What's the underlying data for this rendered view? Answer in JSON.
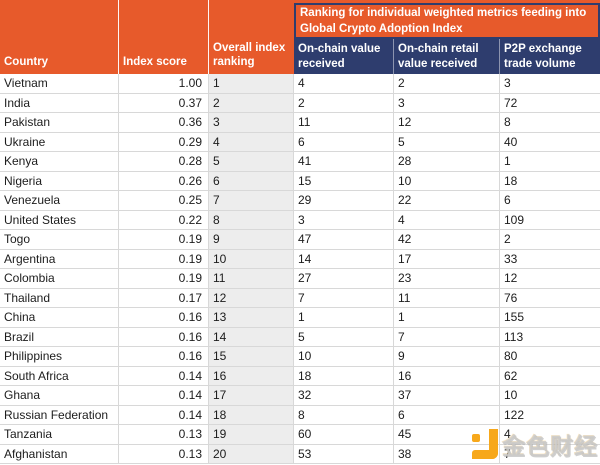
{
  "colors": {
    "orange": "#E75A2B",
    "navy": "#2E3D6E",
    "ranking_column_bg": "#EDEDED",
    "grid_line": "#D8D8D8",
    "watermark_gold": "#F7A81B"
  },
  "header": {
    "columns": [
      "Country",
      "Index score",
      "Overall index ranking"
    ],
    "banner": "Ranking for individual weighted metrics feeding into Global Crypto Adoption Index",
    "metric_columns": [
      "On-chain value received",
      "On-chain retail value received",
      "P2P exchange trade volume"
    ]
  },
  "chart_data": {
    "type": "table",
    "title": "Ranking for individual weighted metrics feeding into Global Crypto Adoption Index",
    "columns": [
      "Country",
      "Index score",
      "Overall index ranking",
      "On-chain value received",
      "On-chain retail value received",
      "P2P exchange trade volume"
    ],
    "rows": [
      [
        "Vietnam",
        "1.00",
        "1",
        "4",
        "2",
        "3"
      ],
      [
        "India",
        "0.37",
        "2",
        "2",
        "3",
        "72"
      ],
      [
        "Pakistan",
        "0.36",
        "3",
        "11",
        "12",
        "8"
      ],
      [
        "Ukraine",
        "0.29",
        "4",
        "6",
        "5",
        "40"
      ],
      [
        "Kenya",
        "0.28",
        "5",
        "41",
        "28",
        "1"
      ],
      [
        "Nigeria",
        "0.26",
        "6",
        "15",
        "10",
        "18"
      ],
      [
        "Venezuela",
        "0.25",
        "7",
        "29",
        "22",
        "6"
      ],
      [
        "United States",
        "0.22",
        "8",
        "3",
        "4",
        "109"
      ],
      [
        "Togo",
        "0.19",
        "9",
        "47",
        "42",
        "2"
      ],
      [
        "Argentina",
        "0.19",
        "10",
        "14",
        "17",
        "33"
      ],
      [
        "Colombia",
        "0.19",
        "11",
        "27",
        "23",
        "12"
      ],
      [
        "Thailand",
        "0.17",
        "12",
        "7",
        "11",
        "76"
      ],
      [
        "China",
        "0.16",
        "13",
        "1",
        "1",
        "155"
      ],
      [
        "Brazil",
        "0.16",
        "14",
        "5",
        "7",
        "113"
      ],
      [
        "Philippines",
        "0.16",
        "15",
        "10",
        "9",
        "80"
      ],
      [
        "South Africa",
        "0.14",
        "16",
        "18",
        "16",
        "62"
      ],
      [
        "Ghana",
        "0.14",
        "17",
        "32",
        "37",
        "10"
      ],
      [
        "Russian Federation",
        "0.14",
        "18",
        "8",
        "6",
        "122"
      ],
      [
        "Tanzania",
        "0.13",
        "19",
        "60",
        "45",
        "4"
      ],
      [
        "Afghanistan",
        "0.13",
        "20",
        "53",
        "38",
        "7"
      ]
    ]
  },
  "watermark": {
    "text": "金色财经"
  }
}
